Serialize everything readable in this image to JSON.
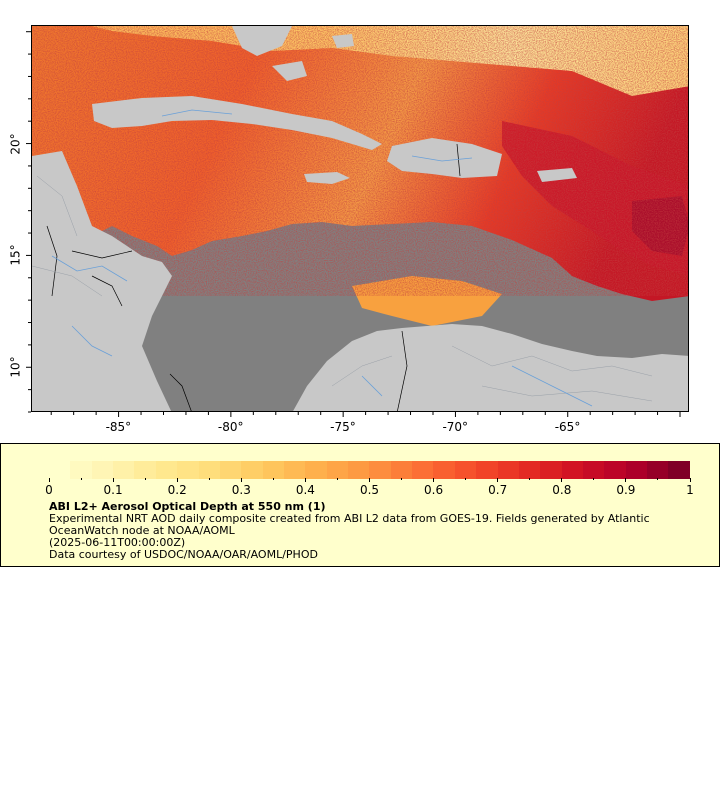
{
  "map": {
    "lon_range": [
      -88.9,
      -59.6
    ],
    "lat_range": [
      8.0,
      25.3
    ],
    "lon_ticks": [
      {
        "value": -85,
        "label": "-85°"
      },
      {
        "value": -80,
        "label": "-80°"
      },
      {
        "value": -75,
        "label": "-75°"
      },
      {
        "value": -70,
        "label": "-70°"
      },
      {
        "value": -65,
        "label": "-65°"
      }
    ],
    "lat_ticks": [
      {
        "value": 20,
        "label": "20°"
      },
      {
        "value": 15,
        "label": "15°"
      },
      {
        "value": 10,
        "label": "10°"
      }
    ],
    "colors": {
      "no_data": "#808080",
      "land": "#c8c8c8",
      "rivers": "#6aa0d8",
      "borders": "#000000"
    }
  },
  "colorbar": {
    "min": 0,
    "max": 1,
    "labels": [
      "0",
      "0.1",
      "0.2",
      "0.3",
      "0.4",
      "0.5",
      "0.6",
      "0.7",
      "0.8",
      "0.9",
      "1"
    ],
    "colors": [
      "#ffffcc",
      "#fff3b0",
      "#ffe98f",
      "#fedd7a",
      "#fec85f",
      "#feaf4b",
      "#fd9540",
      "#fc7035",
      "#f54d2a",
      "#e52d23",
      "#d11123",
      "#b5002a",
      "#800026"
    ]
  },
  "legend": {
    "title": "ABI L2+ Aerosol Optical Depth at 550 nm (1)",
    "line1": "Experimental NRT AOD daily composite created from ABI L2 data from GOES-19. Fields generated by Atlantic OceanWatch node at NOAA/AOML",
    "line2": "(2025-06-11T00:00:00Z)",
    "line3": "Data courtesy of USDOC/NOAA/OAR/AOML/PHOD"
  }
}
